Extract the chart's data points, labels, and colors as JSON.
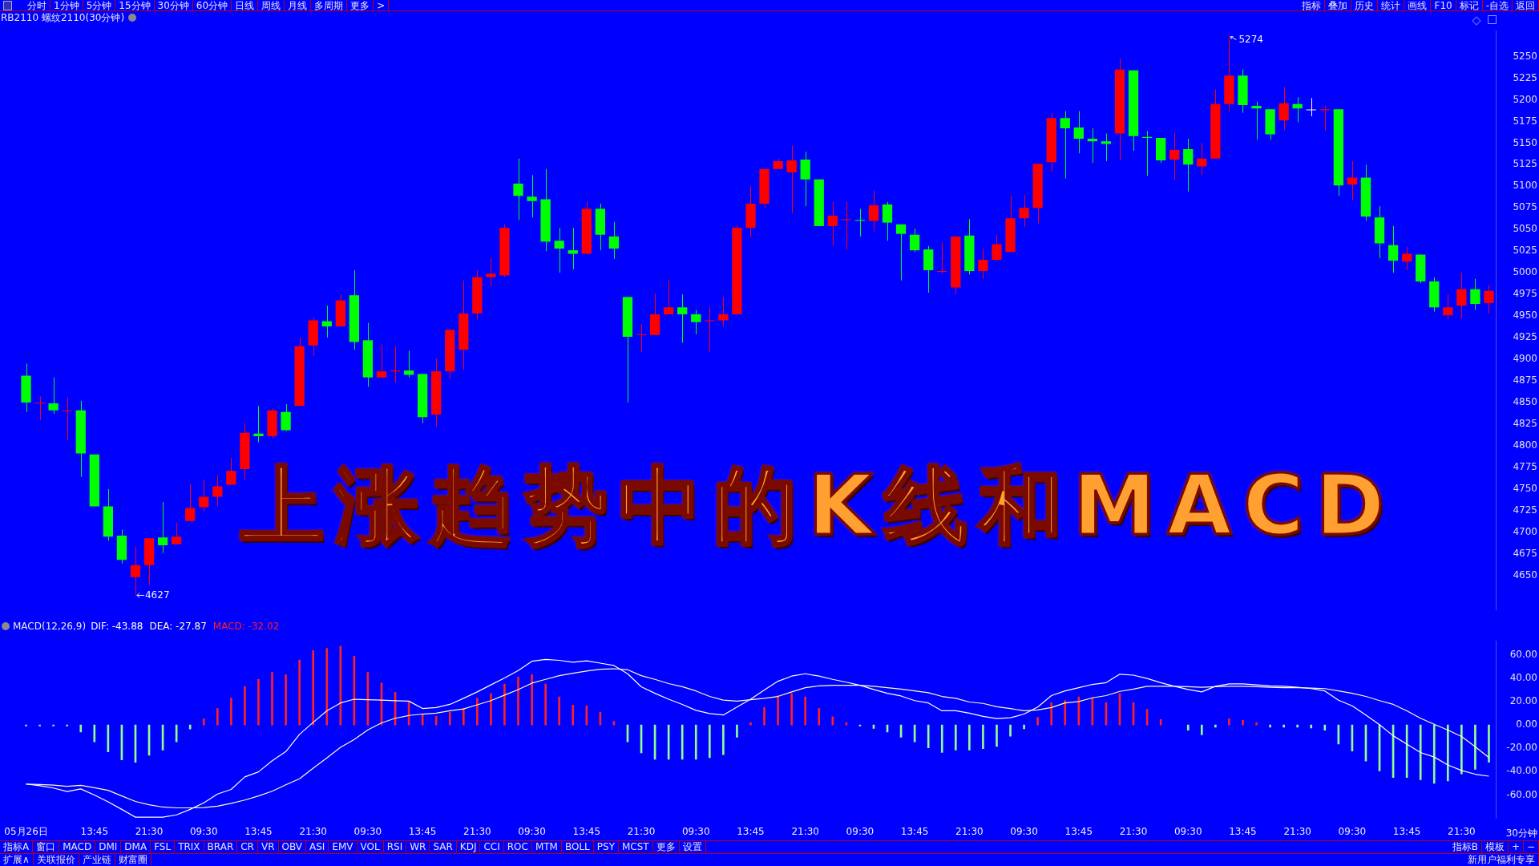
{
  "chart_data": [
    {
      "type": "candlestick",
      "title": "上涨趋势中的K线和MACD",
      "subtitle": "RB2110 螺纹2110(30分钟)",
      "annotations": [
        "分时 1分钟 5分钟 15分钟 30分钟 60分钟 日线 周线 月线 多周期 更多 >",
        "指标 叠加 历史 统计 画线 F10 标记 -自选 返回",
        "5274",
        "4627"
      ],
      "categories": [
        null,
        null,
        null,
        null,
        null,
        null,
        null,
        null,
        null,
        null,
        null,
        null,
        null,
        null,
        null,
        null,
        null,
        null,
        null,
        null,
        null,
        null,
        null,
        null,
        null,
        null,
        null,
        null,
        null,
        null,
        null,
        null,
        null,
        null,
        null,
        null,
        null,
        null,
        null,
        null,
        null,
        null,
        null,
        null,
        null,
        null,
        null,
        null,
        null,
        null,
        null,
        null,
        null,
        null,
        null,
        null,
        null,
        null,
        null,
        null,
        null,
        null,
        null,
        null,
        null,
        null,
        null,
        null,
        null,
        null,
        null,
        null,
        null,
        null,
        null,
        null,
        null,
        null,
        null,
        null,
        null,
        null,
        null,
        null,
        null,
        null,
        null,
        null,
        null,
        null,
        null,
        null,
        null,
        null,
        null,
        null,
        null,
        null,
        null,
        null,
        null,
        null,
        null,
        null,
        null,
        null,
        null,
        null
      ],
      "ohlc": [
        [
          4881,
          4895,
          4839,
          4850
        ],
        [
          4849,
          4857,
          4830,
          4850
        ],
        [
          4849,
          4879,
          4837,
          4841
        ],
        [
          4840,
          4856,
          4806,
          4841
        ],
        [
          4841,
          4852,
          4764,
          4791
        ],
        [
          4790,
          4790,
          4730,
          4730
        ],
        [
          4730,
          4750,
          4690,
          4695
        ],
        [
          4696,
          4703,
          4664,
          4668
        ],
        [
          4648,
          4683,
          4627,
          4662
        ],
        [
          4662,
          4693,
          4639,
          4693
        ],
        [
          4694,
          4735,
          4676,
          4685
        ],
        [
          4686,
          4711,
          4686,
          4695
        ],
        [
          4713,
          4756,
          4713,
          4728
        ],
        [
          4729,
          4761,
          4724,
          4741
        ],
        [
          4741,
          4766,
          4730,
          4753
        ],
        [
          4755,
          4786,
          4755,
          4771
        ],
        [
          4773,
          4826,
          4761,
          4815
        ],
        [
          4814,
          4846,
          4804,
          4811
        ],
        [
          4811,
          4843,
          4809,
          4841
        ],
        [
          4839,
          4848,
          4817,
          4818
        ],
        [
          4846,
          4925,
          4846,
          4915
        ],
        [
          4916,
          4948,
          4904,
          4945
        ],
        [
          4944,
          4962,
          4925,
          4938
        ],
        [
          4938,
          4975,
          4938,
          4968
        ],
        [
          4974,
          5003,
          4911,
          4920
        ],
        [
          4922,
          4942,
          4868,
          4879
        ],
        [
          4879,
          4917,
          4879,
          4886
        ],
        [
          4886,
          4915,
          4873,
          4887
        ],
        [
          4887,
          4910,
          4879,
          4882
        ],
        [
          4883,
          4883,
          4826,
          4833
        ],
        [
          4836,
          4901,
          4822,
          4886
        ],
        [
          4886,
          4934,
          4877,
          4934
        ],
        [
          4911,
          4991,
          4888,
          4953
        ],
        [
          4953,
          5003,
          4946,
          4995
        ],
        [
          4995,
          5017,
          4984,
          4999
        ],
        [
          4997,
          5056,
          4995,
          5052
        ],
        [
          5103,
          5132,
          5061,
          5089
        ],
        [
          5088,
          5113,
          5064,
          5083
        ],
        [
          5085,
          5120,
          5025,
          5036
        ],
        [
          5037,
          5052,
          5000,
          5028
        ],
        [
          5026,
          5052,
          5004,
          5022
        ],
        [
          5022,
          5082,
          5022,
          5074
        ],
        [
          5074,
          5080,
          5026,
          5044
        ],
        [
          5042,
          5059,
          5016,
          5028
        ],
        [
          4972,
          4972,
          4850,
          4926
        ],
        [
          4928,
          4941,
          4908,
          4929
        ],
        [
          4928,
          4976,
          4928,
          4952
        ],
        [
          4952,
          4992,
          4952,
          4960
        ],
        [
          4960,
          4975,
          4919,
          4952
        ],
        [
          4952,
          4957,
          4929,
          4943
        ],
        [
          4944,
          4960,
          4909,
          4945
        ],
        [
          4945,
          4972,
          4938,
          4952
        ],
        [
          4952,
          5055,
          4952,
          5052
        ],
        [
          5052,
          5100,
          5041,
          5080
        ],
        [
          5080,
          5120,
          5075,
          5120
        ],
        [
          5120,
          5132,
          5120,
          5129
        ],
        [
          5116,
          5147,
          5069,
          5130
        ],
        [
          5131,
          5140,
          5077,
          5108
        ],
        [
          5108,
          5108,
          5054,
          5054
        ],
        [
          5054,
          5082,
          5031,
          5066
        ],
        [
          5061,
          5082,
          5027,
          5062
        ],
        [
          5061,
          5074,
          5042,
          5060
        ],
        [
          5060,
          5095,
          5048,
          5078
        ],
        [
          5079,
          5082,
          5037,
          5058
        ],
        [
          5056,
          5056,
          4991,
          5045
        ],
        [
          5044,
          5051,
          5024,
          5026
        ],
        [
          5027,
          5031,
          4977,
          5003
        ],
        [
          5001,
          5035,
          4999,
          5002
        ],
        [
          4983,
          5042,
          4975,
          5042
        ],
        [
          5043,
          5062,
          4998,
          5002
        ],
        [
          5002,
          5028,
          4993,
          5015
        ],
        [
          5015,
          5044,
          5013,
          5033
        ],
        [
          5024,
          5089,
          5024,
          5063
        ],
        [
          5063,
          5090,
          5053,
          5075
        ],
        [
          5075,
          5126,
          5057,
          5126
        ],
        [
          5128,
          5185,
          5117,
          5179
        ],
        [
          5179,
          5187,
          5109,
          5167
        ],
        [
          5168,
          5187,
          5138,
          5155
        ],
        [
          5155,
          5167,
          5127,
          5152
        ],
        [
          5152,
          5161,
          5129,
          5149
        ],
        [
          5161,
          5248,
          5130,
          5235
        ],
        [
          5234,
          5234,
          5141,
          5158
        ],
        [
          5157,
          5164,
          5112,
          5156
        ],
        [
          5156,
          5156,
          5127,
          5130
        ],
        [
          5131,
          5162,
          5107,
          5142
        ],
        [
          5143,
          5155,
          5094,
          5125
        ],
        [
          5123,
          5150,
          5113,
          5132
        ],
        [
          5132,
          5212,
          5132,
          5195
        ],
        [
          5195,
          5274,
          5187,
          5228
        ],
        [
          5228,
          5235,
          5185,
          5194
        ],
        [
          5193,
          5198,
          5154,
          5190
        ],
        [
          5189,
          5189,
          5154,
          5160
        ],
        [
          5176,
          5215,
          5165,
          5196
        ],
        [
          5195,
          5203,
          5174,
          5190
        ],
        [
          5188,
          5202,
          5181,
          5188
        ],
        [
          5188,
          5193,
          5164,
          5189
        ],
        [
          5189,
          5189,
          5089,
          5101
        ],
        [
          5102,
          5129,
          5084,
          5110
        ],
        [
          5110,
          5125,
          5060,
          5065
        ],
        [
          5064,
          5077,
          5017,
          5034
        ],
        [
          5032,
          5054,
          5000,
          5014
        ],
        [
          5013,
          5030,
          5003,
          5022
        ],
        [
          5021,
          5021,
          4988,
          4990
        ],
        [
          4990,
          4995,
          4955,
          4960
        ],
        [
          4951,
          4975,
          4946,
          4960
        ],
        [
          4962,
          5000,
          4947,
          4981
        ],
        [
          4981,
          4993,
          4957,
          4964
        ],
        [
          4965,
          4986,
          4953,
          4979
        ]
      ],
      "colors": [
        "#00ff00",
        "#ff0000",
        "#00ff00",
        "#ff0000",
        "#00ff00",
        "#00ff00",
        "#00ff00",
        "#00ff00",
        "#ff0000",
        "#ff0000",
        "#00ff00",
        "#ff0000",
        "#ff0000",
        "#ff0000",
        "#ff0000",
        "#ff0000",
        "#ff0000",
        "#00ff00",
        "#ff0000",
        "#00ff00",
        "#ff0000",
        "#ff0000",
        "#00ff00",
        "#ff0000",
        "#00ff00",
        "#00ff00",
        "#ff0000",
        "#ff0000",
        "#00ff00",
        "#00ff00",
        "#ff0000",
        "#ff0000",
        "#ff0000",
        "#ff0000",
        "#ff0000",
        "#ff0000",
        "#00ff00",
        "#00ff00",
        "#00ff00",
        "#00ff00",
        "#00ff00",
        "#ff0000",
        "#00ff00",
        "#00ff00",
        "#00ff00",
        "#ff0000",
        "#ff0000",
        "#ff0000",
        "#00ff00",
        "#00ff00",
        "#ff0000",
        "#ff0000",
        "#ff0000",
        "#ff0000",
        "#ff0000",
        "#ff0000",
        "#ff0000",
        "#00ff00",
        "#00ff00",
        "#ff0000",
        "#ff0000",
        "#00ff00",
        "#ff0000",
        "#00ff00",
        "#00ff00",
        "#00ff00",
        "#00ff00",
        "#ff0000",
        "#ff0000",
        "#00ff00",
        "#ff0000",
        "#ff0000",
        "#ff0000",
        "#ff0000",
        "#ff0000",
        "#ff0000",
        "#00ff00",
        "#00ff00",
        "#00ff00",
        "#00ff00",
        "#ff0000",
        "#00ff00",
        "#00ff00",
        "#00ff00",
        "#ff0000",
        "#00ff00",
        "#ff0000",
        "#ff0000",
        "#ff0000",
        "#00ff00",
        "#00ff00",
        "#00ff00",
        "#ff0000",
        "#00ff00",
        "#ffffff",
        "#ff0000",
        "#00ff00",
        "#ff0000",
        "#00ff00",
        "#00ff00",
        "#00ff00",
        "#ff0000",
        "#00ff00",
        "#00ff00",
        "#ff0000",
        "#ff0000",
        "#00ff00",
        "#ff0000"
      ],
      "ylim": [
        4610,
        5280
      ],
      "yticks": [
        4650,
        4675,
        4700,
        4725,
        4750,
        4775,
        4800,
        4825,
        4850,
        4875,
        4900,
        4925,
        4950,
        4975,
        5000,
        5025,
        5050,
        5075,
        5100,
        5125,
        5150,
        5175,
        5200,
        5225,
        5250
      ],
      "tick_labels": "y"
    },
    {
      "type": "line",
      "title": "MACD(12,26,9)",
      "xlabel": "30分钟",
      "legend": "top left",
      "marker": "none",
      "annotations": [
        "指标A 窗口 MACD DMI DMA FSL TRIX BRAR CR VR OBV ASI EMV VOL RSI WR SAR KDJ CCI ROC MTM BOLL PSY MCST 更多 设置",
        "指标B 模板 + −",
        "扩展∧ 关联报价 产业链 财富圈",
        "新用户福利专享"
      ],
      "categories": [
        "05月26日",
        null,
        null,
        null,
        null,
        "13:45",
        null,
        null,
        null,
        "21:30",
        null,
        null,
        null,
        "09:30",
        null,
        null,
        null,
        "13:45",
        null,
        null,
        null,
        "21:30",
        null,
        null,
        null,
        "09:30",
        null,
        null,
        null,
        "13:45",
        null,
        null,
        null,
        "21:30",
        null,
        null,
        null,
        "09:30",
        null,
        null,
        null,
        "13:45",
        null,
        null,
        null,
        "21:30",
        null,
        null,
        null,
        "09:30",
        null,
        null,
        null,
        "13:45",
        null,
        null,
        null,
        "21:30",
        null,
        null,
        null,
        "09:30",
        null,
        null,
        null,
        "13:45",
        null,
        null,
        null,
        "21:30",
        null,
        null,
        null,
        "09:30",
        null,
        null,
        null,
        "13:45",
        null,
        null,
        null,
        "21:30",
        null,
        null,
        null,
        "09:30",
        null,
        null,
        null,
        "13:45",
        null,
        null,
        null,
        "21:30",
        null,
        null,
        null,
        "09:30",
        null,
        null,
        null,
        "13:45",
        null,
        null,
        null,
        "21:30",
        null,
        null
      ],
      "series": [
        {
          "name": "DIF: -43.88",
          "color": "#ffffff",
          "values": [
            -50.6,
            -52,
            -54,
            -57,
            -54.8,
            -60,
            -65.9,
            -72.3,
            -79,
            -79,
            -79,
            -77,
            -72.3,
            -66.7,
            -59.2,
            -55.2,
            -44.5,
            -40.2,
            -30.7,
            -22.8,
            -8.1,
            2.2,
            12.1,
            18.8,
            22,
            21.6,
            21.2,
            20.8,
            20.4,
            14.1,
            14.9,
            17.6,
            22.8,
            28.3,
            34.3,
            40.2,
            46.6,
            54.5,
            56.1,
            55.3,
            53.7,
            54.9,
            52.9,
            50.9,
            43.8,
            32.7,
            27.1,
            22,
            17.6,
            12.5,
            9.7,
            8.5,
            15.3,
            22,
            29.9,
            37.4,
            41.8,
            43.8,
            41.8,
            39,
            36.6,
            33.9,
            30.3,
            27.1,
            24.8,
            20.8,
            18.8,
            12.1,
            12.1,
            10.1,
            7.3,
            5.4,
            6.1,
            9.3,
            15.3,
            25.1,
            29.1,
            31.9,
            34.7,
            36.2,
            43.4,
            42.6,
            39.8,
            36.2,
            33.1,
            30.3,
            28.3,
            33.1,
            35.1,
            35.1,
            34.3,
            33.5,
            33.1,
            32.3,
            31.1,
            29.1,
            21.2,
            16.4,
            8.5,
            0.2,
            -9.3,
            -16.4,
            -23.6,
            -27.5,
            -34.3,
            -39,
            -42.2,
            -43.9
          ]
        },
        {
          "name": "DEA: -27.87",
          "color": "#ffffc0",
          "values": [
            -50.6,
            -51,
            -51.5,
            -52.5,
            -51.7,
            -53.7,
            -56,
            -60.8,
            -65.5,
            -68.3,
            -70.3,
            -71,
            -71,
            -70.7,
            -69.5,
            -67.1,
            -64.3,
            -60.8,
            -56.8,
            -51.3,
            -46.1,
            -37,
            -28.3,
            -19.2,
            -12.5,
            -4.2,
            1.8,
            5.7,
            8.1,
            9.3,
            10.1,
            12.1,
            13.7,
            17.2,
            20.8,
            25.5,
            30.3,
            35.8,
            39,
            42.2,
            44.2,
            46.1,
            47.7,
            48.1,
            47.3,
            42.2,
            39,
            35.4,
            32.7,
            29.1,
            24.4,
            21.2,
            20.4,
            21.6,
            22.8,
            24.4,
            28.3,
            31.9,
            33.5,
            33.9,
            33.9,
            33.9,
            33.1,
            31.9,
            30.7,
            29.1,
            27.6,
            24.4,
            22.8,
            19.6,
            18.4,
            15.6,
            14.1,
            12.1,
            12.9,
            14.9,
            18.8,
            20,
            23.2,
            25.1,
            28.7,
            30.7,
            33.1,
            33.1,
            33.1,
            32.7,
            32.3,
            32.7,
            33.1,
            33.1,
            32.7,
            32.3,
            31.9,
            31.9,
            31.5,
            31.1,
            29.1,
            27.1,
            24.4,
            20.8,
            17.6,
            12.1,
            5.7,
            0.6,
            -4.4,
            -9.9,
            -18.7,
            -27.9
          ]
        },
        {
          "name": "MACD: -32.02",
          "type": "bar",
          "color": "#ff2020",
          "values": [
            -1,
            -1,
            -1,
            -1,
            -6,
            -14.4,
            -23,
            -30,
            -32,
            -26,
            -21.5,
            -14.5,
            -3.5,
            5.4,
            14,
            23,
            33,
            39,
            45,
            43,
            55.6,
            63.6,
            65.5,
            67.5,
            58.8,
            45,
            36,
            28,
            20,
            8.5,
            7.3,
            11,
            14,
            23,
            27,
            35,
            41,
            43,
            35,
            24,
            17,
            16.4,
            11,
            3,
            -14.4,
            -24,
            -29.5,
            -29.5,
            -29.5,
            -29.5,
            -28,
            -25.5,
            -10.5,
            2,
            15,
            25,
            27,
            24,
            14,
            7,
            2,
            -1,
            -3,
            -6,
            -10.5,
            -14.5,
            -19.6,
            -23.6,
            -21.6,
            -21.6,
            -20.4,
            -18.4,
            -9.7,
            -3.4,
            6.5,
            19,
            21,
            24,
            23,
            19,
            27,
            19,
            13.3,
            4.6,
            null,
            -4.6,
            -8.5,
            -2,
            5.4,
            4,
            2,
            -2,
            -2,
            -2,
            -2.6,
            -4.6,
            -16.4,
            -22.4,
            -31,
            -39.4,
            -45,
            -45,
            -47,
            -50,
            -48,
            -42,
            -38,
            -32
          ],
          "colors": [
            "#90ff90",
            "#90ff90",
            "#90ff90",
            "#90ff90",
            "#90ff90",
            "#90ff90",
            "#90ff90",
            "#90ff90",
            "#90ff90",
            "#90ff90",
            "#90ff90",
            "#90ff90",
            "#90ff90",
            "#ff2020",
            "#ff2020",
            "#ff2020",
            "#ff2020",
            "#ff2020",
            "#ff2020",
            "#ff2020",
            "#ff2020",
            "#ff2020",
            "#ff2020",
            "#ff2020",
            "#ff2020",
            "#ff2020",
            "#ff2020",
            "#ff2020",
            "#ff2020",
            "#ff2020",
            "#ff2020",
            "#ff2020",
            "#ff2020",
            "#ff2020",
            "#ff2020",
            "#ff2020",
            "#ff2020",
            "#ff2020",
            "#ff2020",
            "#ff2020",
            "#ff2020",
            "#ff2020",
            "#ff2020",
            "#ff2020",
            "#90ff90",
            "#90ff90",
            "#90ff90",
            "#90ff90",
            "#90ff90",
            "#90ff90",
            "#90ff90",
            "#90ff90",
            "#90ff90",
            "#ff2020",
            "#ff2020",
            "#ff2020",
            "#ff2020",
            "#ff2020",
            "#ff2020",
            "#ff2020",
            "#ff2020",
            "#90ff90",
            "#90ff90",
            "#90ff90",
            "#90ff90",
            "#90ff90",
            "#90ff90",
            "#90ff90",
            "#90ff90",
            "#90ff90",
            "#90ff90",
            "#90ff90",
            "#90ff90",
            "#90ff90",
            "#ff2020",
            "#ff2020",
            "#ff2020",
            "#ff2020",
            "#ff2020",
            "#ff2020",
            "#ff2020",
            "#ff2020",
            "#ff2020",
            "#ff2020",
            "#90ff90",
            "#90ff90",
            "#90ff90",
            "#90ff90",
            "#ff2020",
            "#ff2020",
            "#ff2020",
            "#90ff90",
            "#90ff90",
            "#90ff90",
            "#90ff90",
            "#90ff90",
            "#90ff90",
            "#90ff90",
            "#90ff90",
            "#90ff90",
            "#90ff90",
            "#90ff90",
            "#90ff90",
            "#90ff90",
            "#90ff90",
            "#90ff90",
            "#90ff90",
            "#90ff90"
          ]
        }
      ],
      "ylim": [
        -80,
        72
      ],
      "yticks": [
        {
          "value": 60,
          "label": "60.00"
        },
        {
          "value": 40,
          "label": "40.00"
        },
        {
          "value": 20,
          "label": "20.00"
        },
        {
          "value": 0,
          "label": "0.00"
        },
        {
          "value": -20,
          "label": "-20.00"
        },
        {
          "value": -40,
          "label": "-40.00"
        },
        {
          "value": -60,
          "label": "-60.00"
        }
      ]
    }
  ]
}
